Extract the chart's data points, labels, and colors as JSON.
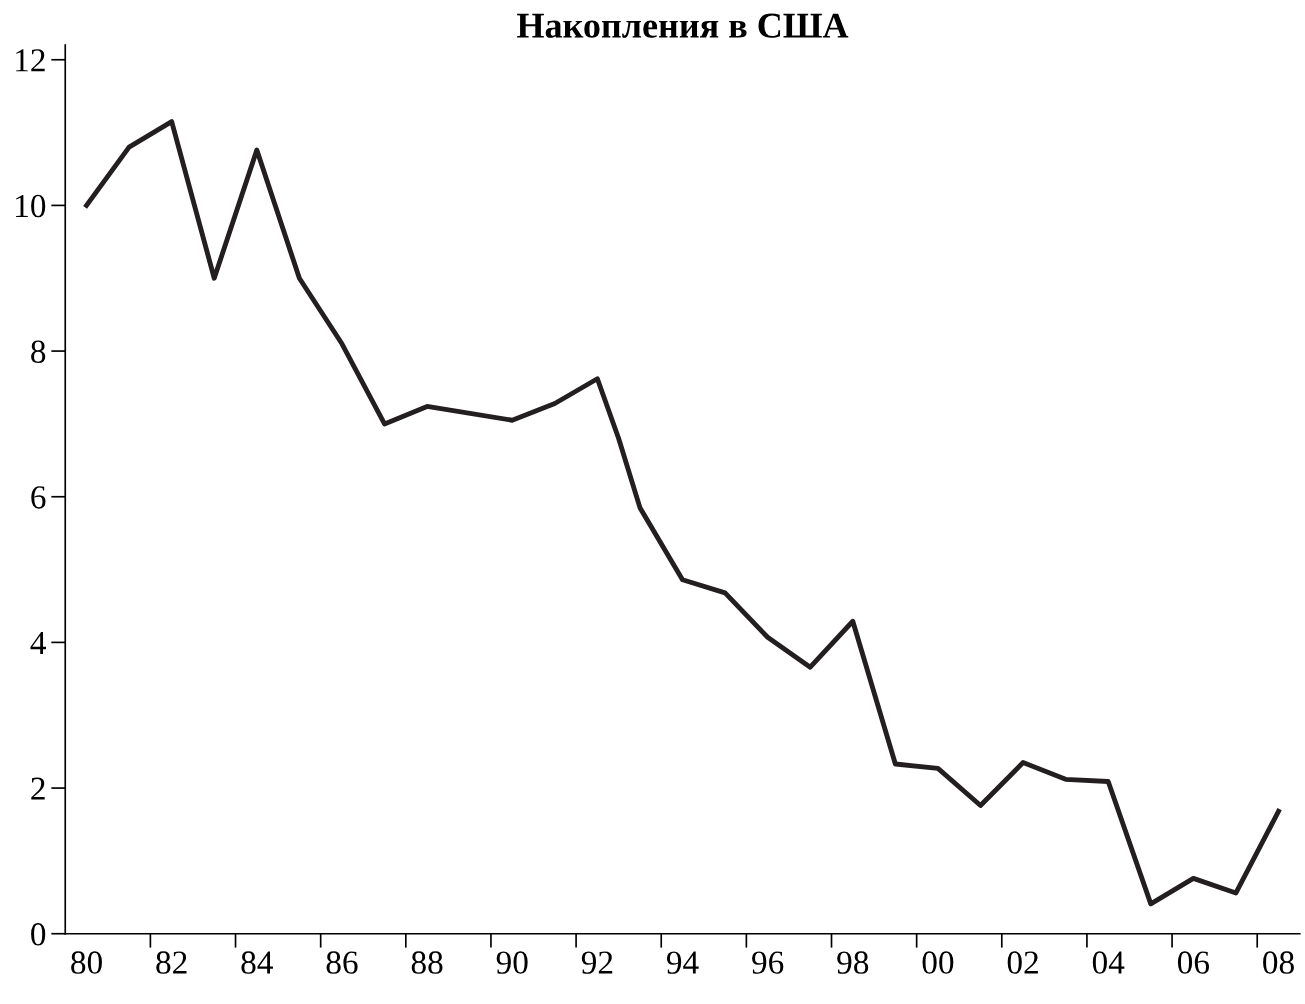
{
  "chart_data": {
    "type": "line",
    "title": "Накопления в США",
    "x": [
      1980,
      1981,
      1982,
      1983,
      1984,
      1985,
      1986,
      1987,
      1988,
      1990,
      1991,
      1992,
      1992.5,
      1993,
      1994,
      1995,
      1996,
      1997,
      1998,
      1999,
      2000,
      2001,
      2002,
      2003,
      2004,
      2005,
      2006,
      2007,
      2008
    ],
    "series": [
      {
        "color": "#231f20",
        "values": [
          10.0,
          10.8,
          11.15,
          9.0,
          10.76,
          9.0,
          8.1,
          7.0,
          7.24,
          7.05,
          7.28,
          7.62,
          6.8,
          5.85,
          4.86,
          4.68,
          4.07,
          3.66,
          4.29,
          2.33,
          2.27,
          1.76,
          2.35,
          2.12,
          2.09,
          0.41,
          0.76,
          0.56,
          1.68
        ]
      }
    ],
    "xlim": [
      1979.5,
      2008.5
    ],
    "xticks": [
      {
        "value": 1980,
        "label": "80"
      },
      {
        "value": 1982,
        "label": "82"
      },
      {
        "value": 1984,
        "label": "84"
      },
      {
        "value": 1986,
        "label": "86"
      },
      {
        "value": 1988,
        "label": "88"
      },
      {
        "value": 1990,
        "label": "90"
      },
      {
        "value": 1992,
        "label": "92"
      },
      {
        "value": 1994,
        "label": "94"
      },
      {
        "value": 1996,
        "label": "96"
      },
      {
        "value": 1998,
        "label": "98"
      },
      {
        "value": 2000,
        "label": "00"
      },
      {
        "value": 2002,
        "label": "02"
      },
      {
        "value": 2004,
        "label": "04"
      },
      {
        "value": 2006,
        "label": "06"
      },
      {
        "value": 2008,
        "label": "08"
      },
      {
        "value": 1981.5,
        "label": null
      },
      {
        "value": 1983.5,
        "label": null
      },
      {
        "value": 1985.5,
        "label": null
      },
      {
        "value": 1987.5,
        "label": null
      },
      {
        "value": 1989.5,
        "label": null
      },
      {
        "value": 1991.5,
        "label": null
      },
      {
        "value": 1993.5,
        "label": null
      },
      {
        "value": 1995.5,
        "label": null
      },
      {
        "value": 1997.5,
        "label": null
      },
      {
        "value": 1999.5,
        "label": null
      },
      {
        "value": 2001.5,
        "label": null
      },
      {
        "value": 2003.5,
        "label": null
      },
      {
        "value": 2005.5,
        "label": null
      },
      {
        "value": 2007.5,
        "label": null
      }
    ],
    "ylim": [
      0,
      12.2
    ],
    "yticks": [
      0,
      2,
      4,
      6,
      8,
      10,
      12
    ],
    "grid": false,
    "legend": false,
    "marker": "none",
    "line_style": "solid"
  }
}
